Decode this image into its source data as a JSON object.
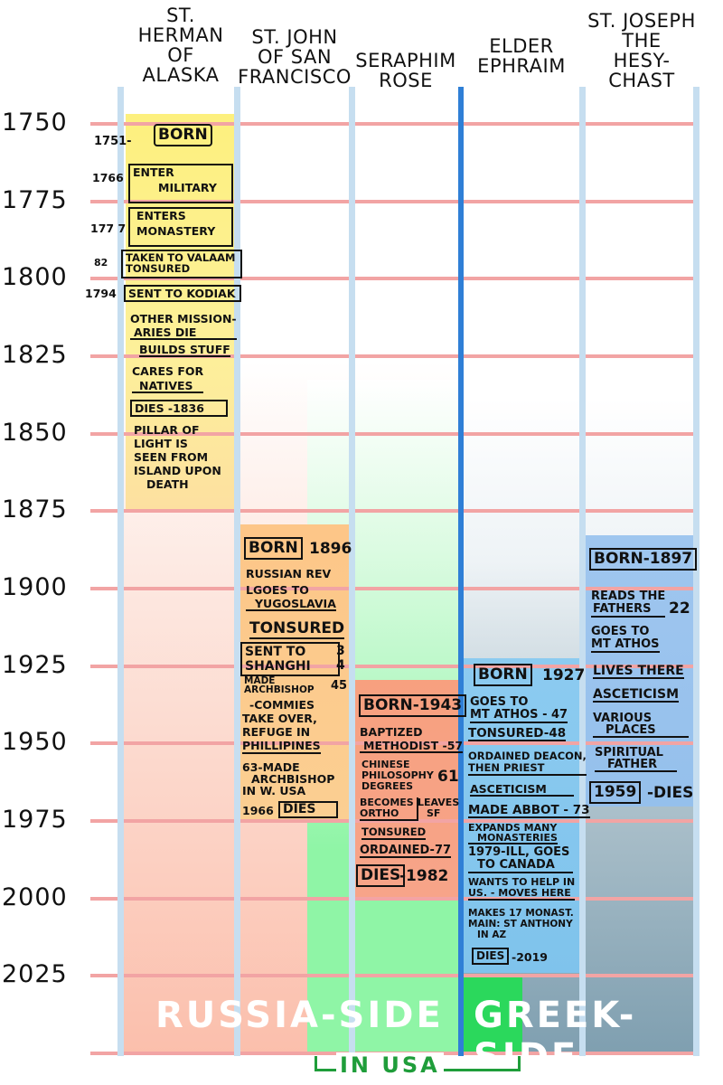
{
  "years": [
    "1750",
    "1775",
    "1800",
    "1825",
    "1850",
    "1875",
    "1900",
    "1925",
    "1950",
    "1975",
    "2000",
    "2025"
  ],
  "columns": {
    "herman": {
      "title": [
        "ST.",
        "HERMAN",
        "OF",
        "ALASKA"
      ],
      "events": {
        "born_year": "1751-",
        "born": "BORN",
        "military_year": "1766",
        "military_1": "ENTER",
        "military_2": "MILITARY",
        "monastery_year": "177 7",
        "monastery_1": "ENTERS",
        "monastery_2": "MONASTERY",
        "valaam_year": "82",
        "valaam_1": "TAKEN TO VALAAM",
        "valaam_2": "TONSURED",
        "kodiak_year": "1794",
        "kodiak": "SENT TO KODIAK",
        "missionaries_1": "OTHER MISSION-",
        "missionaries_2": "ARIES DIE",
        "builds": "BUILDS STUFF",
        "cares_1": "CARES FOR",
        "cares_2": "NATIVES",
        "dies": "DIES -1836",
        "pillar_1": "PILLAR OF",
        "pillar_2": "LIGHT IS",
        "pillar_3": "SEEN FROM",
        "pillar_4": "ISLAND UPON",
        "pillar_5": "DEATH"
      }
    },
    "john": {
      "title": [
        "ST. JOHN",
        "OF SAN",
        "FRANCISCO"
      ],
      "events": {
        "born": "BORN",
        "born_year": "1896",
        "rev": "RUSSIAN REV",
        "yugo_1": "LGOES TO",
        "yugo_2": "YUGOSLAVIA",
        "tonsured": "TONSURED",
        "shanghai_1": "SENT TO",
        "shanghai_2": "SHANGHI",
        "shanghai_year_1": "3",
        "shanghai_year_2": "4",
        "archbishop_1": "MADE",
        "archbishop_2": "ARCHBISHOP",
        "archbishop_year": "45",
        "commies_1": "-COMMIES",
        "commies_2": "TAKE OVER,",
        "commies_3": "REFUGE IN",
        "commies_4": "PHILLIPINES",
        "usa_1": "63-MADE",
        "usa_2": "ARCHBISHOP",
        "usa_3": "IN W. USA",
        "dies_year": "1966",
        "dies": "DIES"
      }
    },
    "seraphim": {
      "title": [
        "SERAPHIM",
        "ROSE"
      ],
      "events": {
        "born": "BORN-1943",
        "baptized_1": "BAPTIZED",
        "baptized_2": "METHODIST -57",
        "phil_1": "CHINESE",
        "phil_2": "PHILOSOPHY",
        "phil_3": "DEGREES",
        "phil_year": "61",
        "ortho_1": "BECOMES",
        "ortho_2": "ORTHO",
        "leaves_1": "LEAVES",
        "leaves_2": "SF",
        "tonsured": "TONSURED",
        "ordained": "ORDAINED-77",
        "dies": "DIES",
        "dies_year": "-1982"
      }
    },
    "ephraim": {
      "title": [
        "ELDER",
        "EPHRAIM"
      ],
      "events": {
        "born": "BORN",
        "born_year": "1927",
        "athos": "GOES TO",
        "athos_2": "MT ATHOS - 47",
        "tonsured": "TONSURED-48",
        "deacon_1": "ORDAINED DEACON,",
        "deacon_2": "THEN PRIEST",
        "ascet": "ASCETICISM",
        "abbot": "MADE ABBOT - 73",
        "expands_1": "EXPANDS MANY",
        "expands_2": "MONASTERIES",
        "canada_1": "1979-ILL, GOES",
        "canada_2": "TO CANADA",
        "us_1": "WANTS TO HELP IN",
        "us_2": "US. - MOVES HERE",
        "makes_1": "MAKES 17 MONAST.",
        "makes_2": "MAIN: ST ANTHONY",
        "makes_3": "IN AZ",
        "dies": "DIES",
        "dies_year": "-2019"
      }
    },
    "joseph": {
      "title": [
        "ST. JOSEPH",
        "THE",
        "HESY-",
        "CHAST"
      ],
      "events": {
        "born": "BORN-1897",
        "reads_1": "READS THE",
        "reads_2": "FATHERS",
        "reads_year": "22",
        "athos_1": "GOES TO",
        "athos_2": "MT ATHOS",
        "lives": "LIVES THERE",
        "ascet": "ASCETICISM",
        "various_1": "VARIOUS",
        "various_2": "PLACES",
        "spirit_1": "SPIRITUAL",
        "spirit_2": "FATHER",
        "dies_year": "1959",
        "dies": "-DIES"
      }
    }
  },
  "footer": {
    "russia": "RUSSIA-SIDE",
    "greek": "GREEK-SIDE",
    "usa": "IN USA"
  },
  "colors": {
    "gridline": "#f2a4a4",
    "column_divider": "#c6def0",
    "center_divider": "#2f7fd6",
    "herman_band": "#fdf09a",
    "john_band": "#fbcf92",
    "seraphim_band": "#f7a489",
    "ephraim_band": "#7fc3ec",
    "joseph_band": "#9cc7ef",
    "russia_side": "#fbb6a0",
    "usa_green": "#8ff5a6",
    "greek_side": "#7f9fb0"
  }
}
